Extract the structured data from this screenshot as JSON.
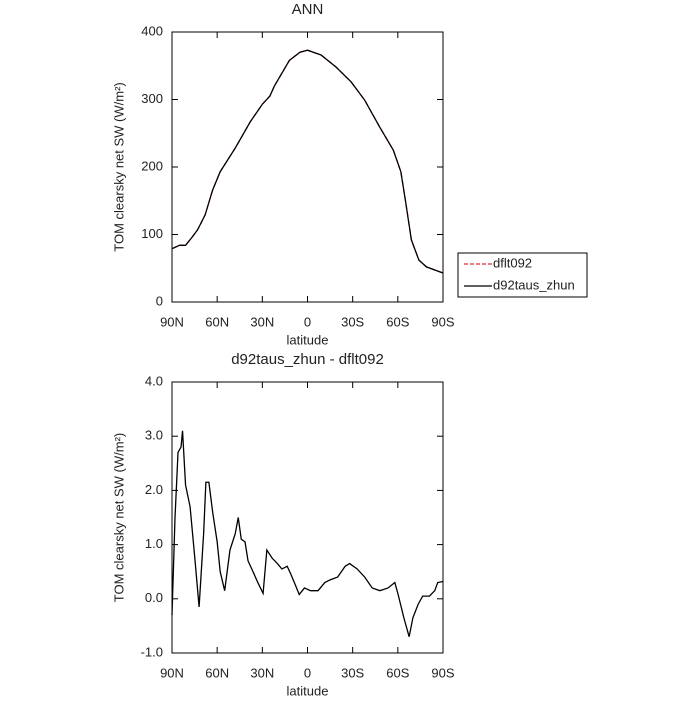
{
  "chart_data": [
    {
      "type": "line",
      "title": "ANN",
      "x_label": "latitude",
      "y_label": "TOM clearsky net SW (W/m²)",
      "x": [
        90,
        85,
        81,
        77,
        73,
        68,
        63,
        58,
        48,
        38,
        30,
        25,
        22,
        12,
        5,
        0,
        -9,
        -19,
        -29,
        -38,
        -48,
        -57,
        -62,
        -65,
        -69,
        -74,
        -79,
        -85,
        -90
      ],
      "series": [
        {
          "name": "dflt092",
          "color": "#e03030",
          "dashed": true,
          "values": [
            79,
            84,
            84,
            95,
            107,
            129,
            166,
            193,
            228,
            267,
            293,
            305,
            320,
            358,
            370,
            373,
            366,
            348,
            326,
            299,
            259,
            225,
            193,
            151,
            92,
            62,
            52,
            47,
            43
          ]
        },
        {
          "name": "d92taus_zhun",
          "color": "#000000",
          "dashed": false,
          "values": [
            79,
            84,
            84,
            95,
            107,
            129,
            166,
            193,
            228,
            267,
            293,
            305,
            320,
            358,
            370,
            373,
            366,
            348,
            326,
            299,
            259,
            225,
            193,
            151,
            92,
            62,
            52,
            47,
            43
          ]
        }
      ],
      "xlim": [
        90,
        -90
      ],
      "xticks": [
        {
          "value": 90,
          "label": "90N"
        },
        {
          "value": 60,
          "label": "60N"
        },
        {
          "value": 30,
          "label": "30N"
        },
        0,
        {
          "value": -30,
          "label": "30S"
        },
        {
          "value": -60,
          "label": "60S"
        },
        {
          "value": -90,
          "label": "90S"
        }
      ],
      "ylim": [
        0,
        400
      ],
      "yticks": [
        0,
        100,
        200,
        300,
        400
      ],
      "legend": "right"
    },
    {
      "type": "line",
      "title": "d92taus_zhun - dflt092",
      "x_label": "latitude",
      "y_label": "TOM clearsky net SW (W/m²)",
      "x": [
        90,
        88,
        86,
        84,
        83,
        81,
        78,
        75,
        72,
        69,
        67.5,
        65.5,
        63,
        60,
        58,
        55,
        51.5,
        48,
        46,
        44,
        41.5,
        39.5,
        37,
        33,
        29.5,
        27,
        23.5,
        20,
        17,
        13.5,
        11,
        8,
        5.5,
        2,
        -2,
        -7,
        -11.5,
        -15,
        -20,
        -25,
        -28,
        -33,
        -38,
        -43,
        -48,
        -53.5,
        -58,
        -60,
        -64,
        -67.5,
        -70,
        -73.5,
        -76.5,
        -81,
        -84.5,
        -86.5,
        -90
      ],
      "values": [
        -0.3,
        1.5,
        2.7,
        2.8,
        3.1,
        2.1,
        1.7,
        0.8,
        -0.15,
        1.2,
        2.15,
        2.15,
        1.6,
        1.05,
        0.5,
        0.15,
        0.9,
        1.2,
        1.5,
        1.1,
        1.05,
        0.7,
        0.55,
        0.3,
        0.1,
        0.9,
        0.75,
        0.65,
        0.55,
        0.6,
        0.45,
        0.25,
        0.08,
        0.2,
        0.15,
        0.15,
        0.3,
        0.35,
        0.4,
        0.6,
        0.65,
        0.55,
        0.4,
        0.2,
        0.15,
        0.2,
        0.3,
        0.1,
        -0.35,
        -0.7,
        -0.35,
        -0.1,
        0.05,
        0.05,
        0.15,
        0.3,
        0.32
      ],
      "color": "#000000",
      "xlim": [
        90,
        -90
      ],
      "xticks": [
        {
          "value": 90,
          "label": "90N"
        },
        {
          "value": 60,
          "label": "60N"
        },
        {
          "value": 30,
          "label": "30N"
        },
        0,
        {
          "value": -30,
          "label": "30S"
        },
        {
          "value": -60,
          "label": "60S"
        },
        {
          "value": -90,
          "label": "90S"
        }
      ],
      "ylim": [
        -1,
        4
      ],
      "yticks": [
        {
          "value": -1,
          "label": "-1.0"
        },
        {
          "value": 0,
          "label": "0.0"
        },
        {
          "value": 1,
          "label": "1.0"
        },
        {
          "value": 2,
          "label": "2.0"
        },
        {
          "value": 3,
          "label": "3.0"
        },
        {
          "value": 4,
          "label": "4.0"
        }
      ]
    }
  ]
}
